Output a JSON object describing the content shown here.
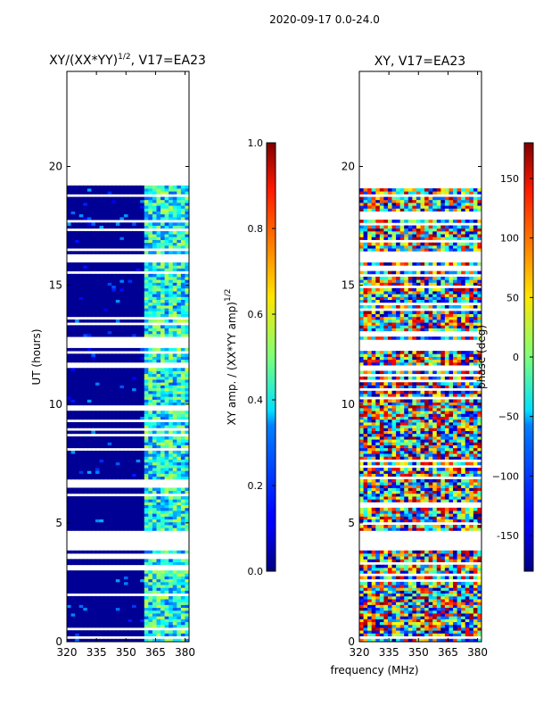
{
  "chart_data": [
    {
      "type": "heatmap",
      "suptitle": "2020-09-17 0.0-24.0",
      "title": "XY/(XX*YY)",
      "title_exponent": "1/2",
      "title_suffix": ", V17=EA23",
      "xlabel": "",
      "ylabel": "UT (hours)",
      "xlim": [
        320,
        382
      ],
      "ylim": [
        0,
        24
      ],
      "xticks": [
        "320",
        "335",
        "350",
        "365",
        "380"
      ],
      "yticks": [
        "0",
        "5",
        "10",
        "15",
        "20"
      ],
      "data_extent_hours": [
        0,
        19.2
      ],
      "signal_band_mhz": [
        359,
        382
      ],
      "gap_hours": [
        [
          3.9,
          4.5
        ],
        [
          12.4,
          12.7
        ],
        [
          16.0,
          16.2
        ]
      ],
      "colorbar": {
        "label": "XY amp. / (XX*YY amp)",
        "label_exponent": "1/2",
        "range": [
          0.0,
          1.0
        ],
        "ticks": [
          "0.0",
          "0.2",
          "0.4",
          "0.6",
          "0.8",
          "1.0"
        ],
        "colormap": "jet"
      }
    },
    {
      "type": "heatmap",
      "title": "XY, V17=EA23",
      "xlabel": "frequency (MHz)",
      "ylabel": "",
      "xlim": [
        320,
        382
      ],
      "ylim": [
        0,
        24
      ],
      "xticks": [
        "320",
        "335",
        "350",
        "365",
        "380"
      ],
      "yticks": [
        "0",
        "5",
        "10",
        "15",
        "20"
      ],
      "data_extent_hours": [
        0,
        19.2
      ],
      "gap_hours": [
        [
          3.9,
          4.5
        ],
        [
          12.4,
          12.7
        ],
        [
          16.0,
          16.2
        ]
      ],
      "colorbar": {
        "label": "phase (deg)",
        "range": [
          -180,
          180
        ],
        "ticks": [
          "-150",
          "−100",
          "−50",
          "0",
          "50",
          "100",
          "150"
        ],
        "colormap": "jet"
      }
    }
  ]
}
